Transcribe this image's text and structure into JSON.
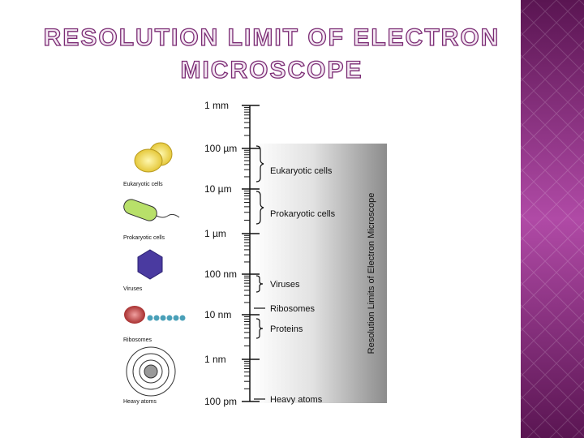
{
  "title": [
    "RESOLUTION LIMIT OF ELECTRON",
    "MICROSCOPE"
  ],
  "scale": [
    "1 mm",
    "100 µm",
    "10 µm",
    "1 µm",
    "100 nm",
    "10 nm",
    "1 nm",
    "100 pm"
  ],
  "icons": [
    "Eukaryotic cells",
    "Prokaryotic cells",
    "Viruses",
    "Ribosomes",
    "Heavy atoms"
  ],
  "ranges": [
    "Eukaryotic cells",
    "Prokaryotic cells",
    "Viruses",
    "Ribosomes",
    "Proteins",
    "Heavy atoms"
  ],
  "bar_label": "Resolution Limits of Electron Microscope"
}
